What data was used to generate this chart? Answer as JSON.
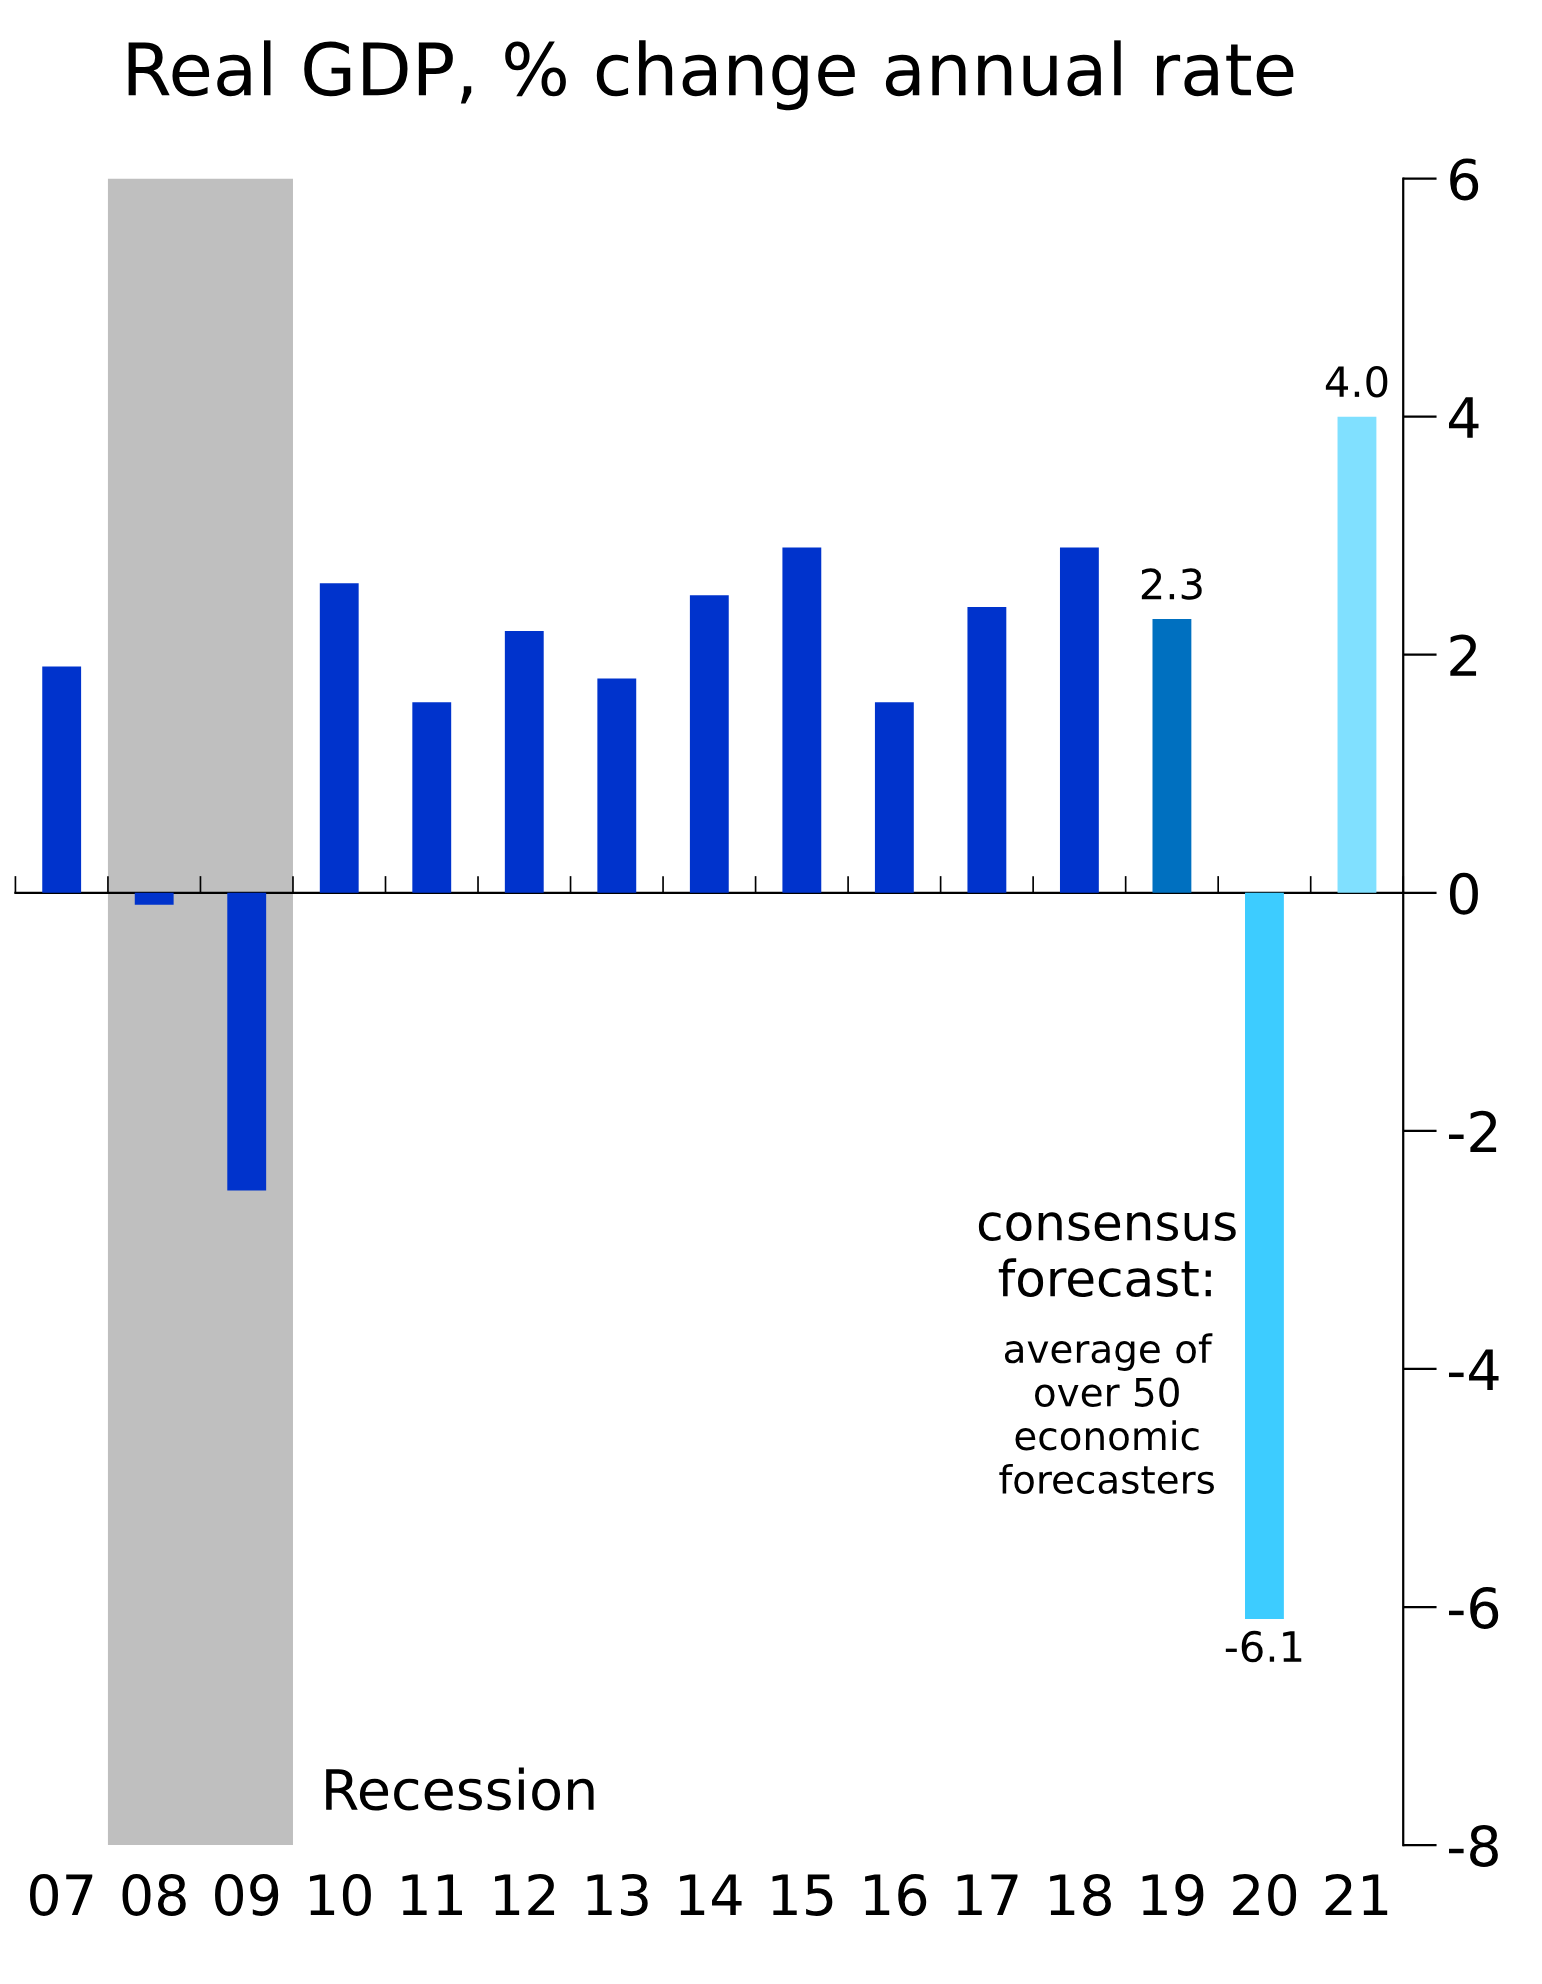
{
  "chart_data": {
    "type": "bar",
    "title": "Real GDP, % change annual rate",
    "categories": [
      "07",
      "08",
      "09",
      "10",
      "11",
      "12",
      "13",
      "14",
      "15",
      "16",
      "17",
      "18",
      "19",
      "20",
      "21"
    ],
    "values": [
      1.9,
      -0.1,
      -2.5,
      2.6,
      1.6,
      2.2,
      1.8,
      2.5,
      2.9,
      1.6,
      2.4,
      2.9,
      2.3,
      -6.1,
      4.0
    ],
    "colors": [
      "#0033cc",
      "#0033cc",
      "#0033cc",
      "#0033cc",
      "#0033cc",
      "#0033cc",
      "#0033cc",
      "#0033cc",
      "#0033cc",
      "#0033cc",
      "#0033cc",
      "#0033cc",
      "#0070c0",
      "#3dccff",
      "#80e0ff"
    ],
    "value_labels": [
      null,
      null,
      null,
      null,
      null,
      null,
      null,
      null,
      null,
      null,
      null,
      null,
      "2.3",
      "-6.1",
      "4.0"
    ],
    "ylim": [
      -8,
      6
    ],
    "yticks": [
      -8,
      -6,
      -4,
      -2,
      0,
      2,
      4,
      6
    ],
    "bands": [
      {
        "axis": "x",
        "from": "08",
        "to": "09",
        "label": "Recession",
        "color": "#bfbfbf"
      }
    ],
    "annotations": [
      "consensus\nforecast:",
      "average of\nover 50\neconomic\nforecasters"
    ]
  }
}
